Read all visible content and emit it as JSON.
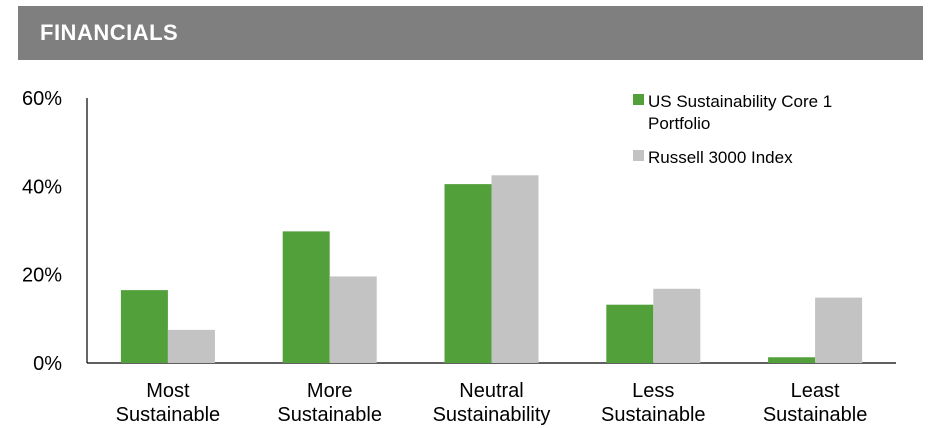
{
  "header": {
    "title": "FINANCIALS"
  },
  "colors": {
    "header_bg": "#7f7f7f",
    "series1": "#52a03a",
    "series2": "#c3c3c3"
  },
  "chart_data": {
    "type": "bar",
    "title": "FINANCIALS",
    "categories": [
      [
        "Most",
        "Sustainable"
      ],
      [
        "More",
        "Sustainable"
      ],
      [
        "Neutral",
        "Sustainability"
      ],
      [
        "Less",
        "Sustainable"
      ],
      [
        "Least",
        "Sustainable"
      ]
    ],
    "series": [
      {
        "name": "US Sustainability Core 1 Portfolio",
        "name_lines": [
          "US Sustainability Core 1",
          "Portfolio"
        ],
        "color": "#52a03a",
        "values": [
          16.5,
          29.8,
          40.5,
          13.2,
          1.3
        ]
      },
      {
        "name": "Russell 3000 Index",
        "name_lines": [
          "Russell 3000 Index"
        ],
        "color": "#c3c3c3",
        "values": [
          7.5,
          19.6,
          42.5,
          16.8,
          14.8
        ]
      }
    ],
    "yticks": [
      "0%",
      "20%",
      "40%",
      "60%"
    ],
    "ylim": [
      0,
      60
    ],
    "xlabel": "",
    "ylabel": "",
    "legend": "top-right",
    "grid": false
  }
}
